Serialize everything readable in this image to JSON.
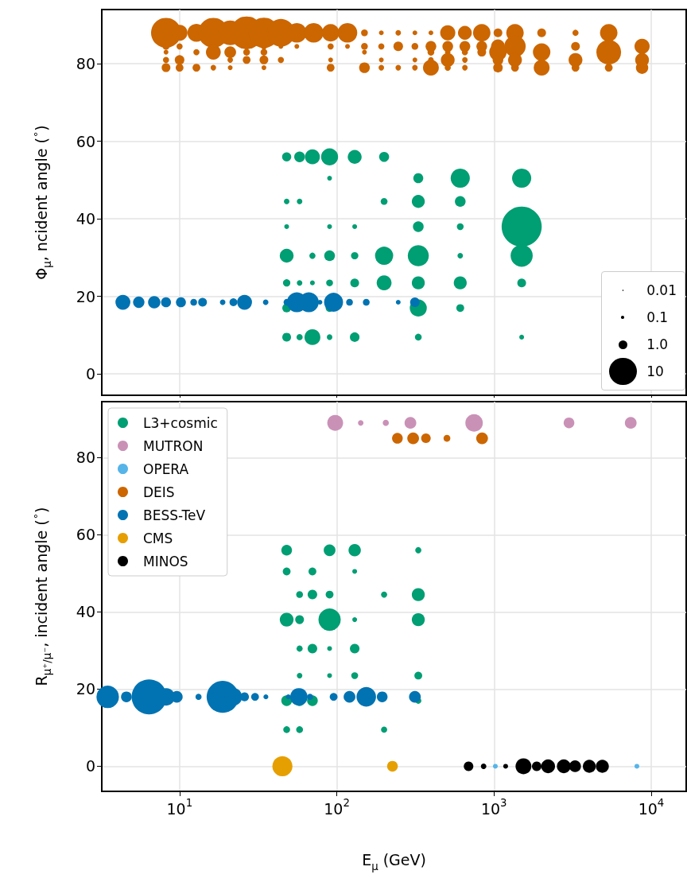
{
  "chart_data": [
    {
      "type": "bubble",
      "ylabel": "Φ$_{μ}$, ncident angle ($^{∘}$)",
      "xlim": [
        3.2,
        16700
      ],
      "xticks": [
        10,
        100,
        1000,
        10000
      ],
      "ylim": [
        -5.5,
        94
      ],
      "yticks": [
        0,
        20,
        40,
        60,
        80
      ],
      "log": "x",
      "grid": true,
      "tick_labels": "y",
      "size_legend": [
        0.01,
        0.1,
        {
          "value": 1,
          "label": "1.0"
        },
        10
      ],
      "legend": "bottom right",
      "series": [
        {
          "color": "#cc6600",
          "x": [
            8.2,
            10,
            12.8,
            16.4,
            21,
            26.7,
            34.4,
            44.1,
            55.7,
            71.3,
            91.4,
            117,
            150,
            192,
            246,
            314,
            397,
            508,
            653,
            836,
            1060,
            1360,
            2010,
            3300,
            5370
          ],
          "values": [
            88,
            88,
            88,
            88,
            88,
            88,
            88,
            88,
            88,
            88,
            88,
            88,
            88,
            88,
            88,
            88,
            88,
            88,
            88,
            88,
            88,
            88,
            88,
            88,
            88
          ],
          "sizes": [
            11.7,
            3.3,
            4.2,
            11.7,
            8,
            14,
            12,
            10,
            5,
            5,
            4,
            5,
            0.6,
            0.3,
            0.4,
            0.3,
            0.3,
            3,
            2.5,
            4,
            1.0,
            4,
            1.0,
            0.5,
            4
          ]
        },
        {
          "color": "#cc6600",
          "x": [
            8.2,
            10,
            26.7,
            34.4,
            44.1,
            55.7,
            91.4,
            117,
            150,
            192,
            246,
            314,
            397,
            508,
            653,
            836,
            1060,
            1360,
            3300,
            8750
          ],
          "values": [
            84.5,
            84.5,
            84.5,
            84.5,
            84.5,
            84.5,
            84.5,
            84.5,
            84.5,
            84.5,
            84.5,
            84.5,
            84.5,
            84.5,
            84.5,
            84.5,
            84.5,
            84.5,
            84.5,
            84.5
          ],
          "sizes": [
            0.6,
            0.5,
            0.5,
            0.5,
            0.3,
            0.3,
            0.5,
            0.3,
            0.6,
            0.5,
            1.2,
            0.6,
            1.5,
            1.5,
            1.5,
            1.5,
            2.5,
            6,
            1.0,
            3
          ]
        },
        {
          "color": "#cc6600",
          "x": [
            8.2,
            12.8,
            16.4,
            21,
            26.7,
            34.4,
            150,
            397,
            508,
            653,
            836,
            1060,
            2010,
            5370,
            8750
          ],
          "values": [
            83,
            83,
            83,
            83,
            83,
            83,
            83,
            83,
            83,
            83,
            83,
            83,
            83,
            83,
            83
          ],
          "sizes": [
            0.3,
            0.5,
            2.9,
            1.8,
            0.6,
            0.6,
            0.3,
            0.6,
            0.4,
            0.5,
            1.0,
            4,
            4,
            8,
            0.5
          ]
        },
        {
          "color": "#cc6600",
          "x": [
            8.2,
            10,
            21,
            26.7,
            34.4,
            44.1,
            91.4,
            192,
            314,
            397,
            508,
            653,
            1060,
            1360,
            3300,
            8750
          ],
          "values": [
            81,
            81,
            81,
            81,
            81,
            81,
            81,
            81,
            81,
            81,
            81,
            81,
            81,
            81,
            81,
            81
          ],
          "sizes": [
            0.5,
            1.2,
            0.4,
            0.8,
            1.0,
            0.5,
            0.3,
            0.3,
            0.3,
            0.4,
            2.5,
            0.4,
            1.5,
            2.5,
            2.5,
            2.5
          ]
        },
        {
          "color": "#cc6600",
          "x": [
            8.2,
            10,
            12.8,
            16.4,
            21,
            34.4,
            91.4,
            150,
            192,
            246,
            314,
            397,
            508,
            653,
            1060,
            1360,
            2010,
            3300,
            5370,
            8750
          ],
          "values": [
            79,
            79,
            79,
            79,
            79,
            79,
            79,
            79,
            79,
            79,
            79,
            79,
            79,
            79,
            79,
            79,
            79,
            79,
            79,
            79
          ],
          "sizes": [
            1.0,
            0.8,
            0.8,
            0.4,
            0.3,
            0.3,
            0.8,
            1.5,
            0.4,
            0.4,
            0.4,
            3.3,
            0.5,
            0.4,
            1.2,
            0.8,
            3.3,
            0.8,
            0.8,
            2
          ]
        },
        {
          "color": "#009e73",
          "x": [
            48,
            58,
            70,
            90,
            130,
            200
          ],
          "values": [
            56,
            56,
            56,
            56,
            56,
            56
          ],
          "sizes": [
            1.1,
            1.5,
            2.9,
            3.8,
            2.5,
            1.3
          ]
        },
        {
          "color": "#009e73",
          "x": [
            90,
            330,
            610,
            1500
          ],
          "values": [
            50.5,
            50.5,
            50.5,
            50.5
          ],
          "sizes": [
            0.3,
            1.3,
            4.8,
            4.8
          ]
        },
        {
          "color": "#009e73",
          "x": [
            48,
            58,
            200,
            330,
            610
          ],
          "values": [
            44.5,
            44.5,
            44.5,
            44.5,
            44.5
          ],
          "sizes": [
            0.4,
            0.4,
            0.6,
            2.2,
            1.5
          ]
        },
        {
          "color": "#009e73",
          "x": [
            48,
            90,
            130,
            330,
            610,
            1500
          ],
          "values": [
            38,
            38,
            38,
            38,
            38,
            38
          ],
          "sizes": [
            0.3,
            0.3,
            0.3,
            1.5,
            0.6,
            21
          ]
        },
        {
          "color": "#009e73",
          "x": [
            48,
            70,
            90,
            130,
            200,
            330,
            610,
            1500
          ],
          "values": [
            30.5,
            30.5,
            30.5,
            30.5,
            30.5,
            30.5,
            30.5,
            30.5
          ],
          "sizes": [
            2.5,
            0.5,
            1.5,
            0.7,
            4.3,
            5.8,
            0.4,
            6.4
          ]
        },
        {
          "color": "#009e73",
          "x": [
            48,
            58,
            70,
            90,
            130,
            200,
            330,
            610,
            1500
          ],
          "values": [
            23.5,
            23.5,
            23.5,
            23.5,
            23.5,
            23.5,
            23.5,
            23.5,
            23.5
          ],
          "sizes": [
            0.7,
            0.4,
            0.3,
            0.6,
            1.0,
            2.9,
            2.2,
            2.2,
            1.0
          ]
        },
        {
          "color": "#009e73",
          "x": [
            48,
            90,
            330,
            610
          ],
          "values": [
            17,
            17,
            17,
            17
          ],
          "sizes": [
            1.0,
            0.8,
            3.8,
            0.8
          ]
        },
        {
          "color": "#009e73",
          "x": [
            48,
            58,
            70,
            90,
            130,
            330,
            1500
          ],
          "values": [
            9.5,
            9.5,
            9.5,
            9.5,
            9.5,
            9.5,
            9.5
          ],
          "sizes": [
            1.0,
            0.5,
            3.3,
            0.4,
            1.2,
            0.6,
            0.3
          ]
        },
        {
          "color": "#0173b2",
          "x": [
            4.36,
            5.5,
            6.9,
            8.2,
            10.2,
            12.3,
            14,
            18.8,
            22,
            25.9,
            35.3,
            48.2,
            55.7,
            66.4,
            78.2,
            95.4,
            120.5,
            154,
            246,
            314
          ],
          "values": [
            18.5,
            18.5,
            18.5,
            18.5,
            18.5,
            18.5,
            18.5,
            18.5,
            18.5,
            18.5,
            18.5,
            18.5,
            18.5,
            18.5,
            18.5,
            18.5,
            18.5,
            18.5,
            18.5,
            18.5
          ],
          "sizes": [
            2.9,
            1.7,
            2,
            1.3,
            1.3,
            0.6,
            1.0,
            0.4,
            0.8,
            2.9,
            0.4,
            0.6,
            5.2,
            5.2,
            0.3,
            4.7,
            0.6,
            0.6,
            0.3,
            1.2
          ]
        }
      ]
    },
    {
      "type": "bubble",
      "xlabel": "E$_{μ}$ (GeV)",
      "ylabel": "R$_{μ⁺/μ⁻}$, incident angle ($^{∘}$)",
      "xlim": [
        3.2,
        16700
      ],
      "xticks": [
        {
          "value": 10,
          "label": "10$^{1}$"
        },
        {
          "value": 100,
          "label": "10$^{2}$"
        },
        {
          "value": 1000,
          "label": "10$^{3}$"
        },
        {
          "value": 10000,
          "label": "10$^{4}$"
        }
      ],
      "ylim": [
        -6.5,
        94.5
      ],
      "yticks": [
        0,
        20,
        40,
        60,
        80
      ],
      "log": "x",
      "grid": true,
      "legend": "top left",
      "series": [
        {
          "name": "L3+cosmic",
          "color": "#009e73",
          "x": [
            48,
            90,
            130,
            330,
            48,
            70,
            130,
            58,
            70,
            90,
            200,
            330,
            48,
            58,
            90,
            130,
            330,
            58,
            70,
            90,
            130,
            58,
            90,
            130,
            330,
            48,
            58,
            70,
            330,
            48,
            58,
            200
          ],
          "values": [
            56,
            56,
            56,
            56,
            50.5,
            50.5,
            50.5,
            44.5,
            44.5,
            44.5,
            44.5,
            44.5,
            38,
            38,
            38,
            38,
            38,
            30.5,
            30.5,
            30.5,
            30.5,
            23.5,
            23.5,
            23.5,
            23.5,
            17,
            17,
            17,
            17,
            9.5,
            9.5,
            9.5
          ],
          "sizes": [
            0.094,
            0.113,
            0.125,
            0.031,
            0.05,
            0.05,
            0.019,
            0.038,
            0.075,
            0.05,
            0.031,
            0.138,
            0.156,
            0.063,
            0.406,
            0.019,
            0.138,
            0.031,
            0.075,
            0.019,
            0.075,
            0.025,
            0.019,
            0.038,
            0.05,
            0.094,
            0.094,
            0.094,
            0.031,
            0.038,
            0.038,
            0.031
          ]
        },
        {
          "name": "MUTRON",
          "color": "#ca91b7",
          "x": [
            97.7,
            142,
            205,
            294,
            747,
            3000,
            7410
          ],
          "values": [
            89,
            89,
            89,
            89,
            89,
            89,
            89
          ],
          "sizes": [
            0.206,
            0.025,
            0.031,
            0.113,
            0.25,
            0.094,
            0.113
          ]
        },
        {
          "name": "OPERA",
          "color": "#56b4e9",
          "x": [
            1020,
            8110
          ],
          "values": [
            0,
            0
          ],
          "sizes": [
            0.019,
            0.019
          ]
        },
        {
          "name": "DEIS",
          "color": "#cc6600",
          "x": [
            243,
            306,
            369,
            502,
            840
          ],
          "values": [
            85,
            85,
            85,
            85,
            85
          ],
          "sizes": [
            0.094,
            0.113,
            0.075,
            0.038,
            0.113
          ]
        },
        {
          "name": "BESS-TeV",
          "color": "#0173b2",
          "x": [
            3.49,
            4.59,
            6.4,
            8.2,
            9.6,
            13.2,
            18.8,
            22,
            25.9,
            30.2,
            35.4,
            49.2,
            57.4,
            67.6,
            95.5,
            120.5,
            154,
            194.5,
            314
          ],
          "values": [
            18,
            18,
            18,
            18,
            18,
            18,
            18,
            18,
            18,
            18,
            18,
            18,
            18,
            18,
            18,
            18,
            18,
            18,
            18
          ],
          "sizes": [
            0.413,
            0.094,
            1,
            0.25,
            0.113,
            0.031,
            0.838,
            0.25,
            0.063,
            0.05,
            0.019,
            0.019,
            0.25,
            0.031,
            0.05,
            0.113,
            0.313,
            0.094,
            0.113
          ]
        },
        {
          "name": "CMS",
          "color": "#e69f00",
          "x": [
            45.1,
            226
          ],
          "values": [
            0,
            0
          ],
          "sizes": [
            0.331,
            0.094
          ]
        },
        {
          "name": "MINOS",
          "color": "#000000",
          "x": [
            689,
            859,
            1186,
            1540,
            1870,
            2210,
            2780,
            3280,
            4040,
            4890
          ],
          "values": [
            0,
            0,
            0,
            0,
            0,
            0,
            0,
            0,
            0,
            0
          ],
          "sizes": [
            0.075,
            0.025,
            0.019,
            0.206,
            0.075,
            0.156,
            0.156,
            0.113,
            0.138,
            0.138
          ]
        }
      ]
    }
  ]
}
